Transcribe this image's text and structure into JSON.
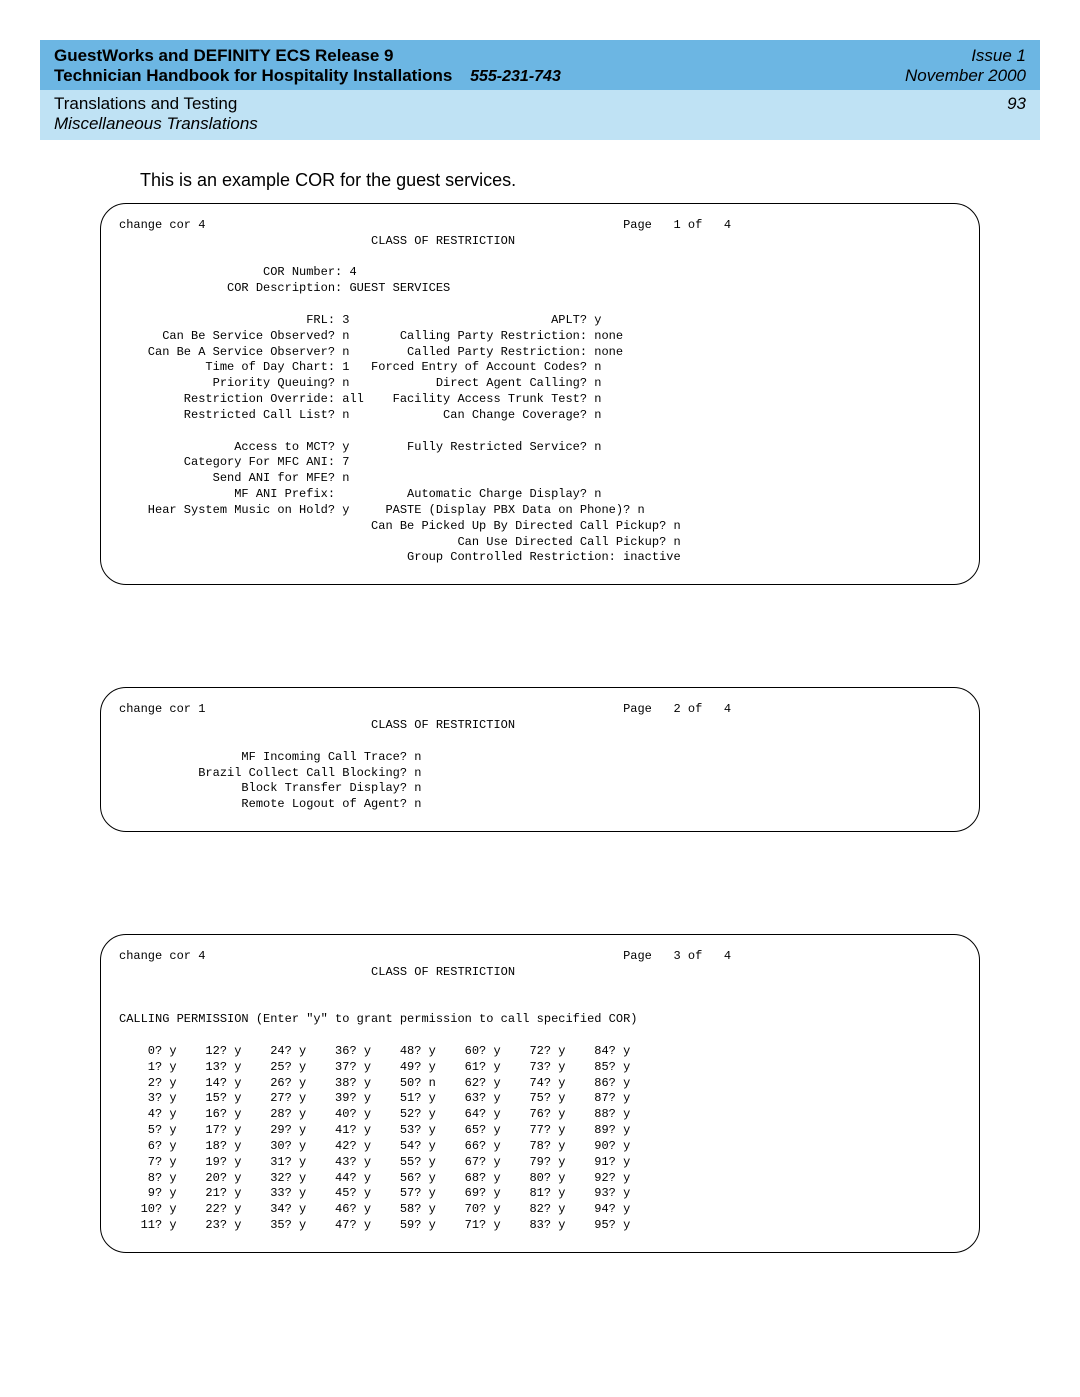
{
  "header": {
    "title": "GuestWorks and DEFINITY ECS Release 9",
    "subtitle": "Technician Handbook for Hospitality Installations",
    "docnum": "555-231-743",
    "issue": "Issue 1",
    "date": "November 2000",
    "section": "Translations and Testing",
    "subsection": "Miscellaneous Translations",
    "page": "93"
  },
  "intro": "This is an example COR for the guest services.",
  "screen1": {
    "cmd": "change cor 4",
    "page": "Page   1 of   4",
    "title": "CLASS OF RESTRICTION",
    "cor_number_label": "COR Number:",
    "cor_number": "4",
    "cor_desc_label": "COR Description:",
    "cor_desc": "GUEST SERVICES",
    "left_fields": [
      {
        "l": "FRL:",
        "v": "3"
      },
      {
        "l": "Can Be Service Observed?",
        "v": "n"
      },
      {
        "l": "Can Be A Service Observer?",
        "v": "n"
      },
      {
        "l": "Time of Day Chart:",
        "v": "1"
      },
      {
        "l": "Priority Queuing?",
        "v": "n"
      },
      {
        "l": "Restriction Override:",
        "v": "all"
      },
      {
        "l": "Restricted Call List?",
        "v": "n"
      }
    ],
    "right_fields": [
      {
        "l": "APLT?",
        "v": "y"
      },
      {
        "l": "Calling Party Restriction:",
        "v": "none"
      },
      {
        "l": "Called Party Restriction:",
        "v": "none"
      },
      {
        "l": "Forced Entry of Account Codes?",
        "v": "n"
      },
      {
        "l": "Direct Agent Calling?",
        "v": "n"
      },
      {
        "l": "Facility Access Trunk Test?",
        "v": "n"
      },
      {
        "l": "Can Change Coverage?",
        "v": "n"
      }
    ],
    "mid_left": [
      {
        "l": "Access to MCT?",
        "v": "y"
      },
      {
        "l": "Category For MFC ANI:",
        "v": "7"
      },
      {
        "l": "Send ANI for MFE?",
        "v": "n"
      },
      {
        "l": "MF ANI Prefix:",
        "v": ""
      },
      {
        "l": "Hear System Music on Hold?",
        "v": "y"
      }
    ],
    "mid_right": [
      {
        "l": "Fully Restricted Service?",
        "v": "n"
      }
    ],
    "bottom": [
      {
        "l": "Automatic Charge Display?",
        "v": "n"
      },
      {
        "l": "PASTE (Display PBX Data on Phone)?",
        "v": "n"
      },
      {
        "l": "Can Be Picked Up By Directed Call Pickup?",
        "v": "n"
      },
      {
        "l": "Can Use Directed Call Pickup?",
        "v": "n"
      },
      {
        "l": "Group Controlled Restriction:",
        "v": "inactive"
      }
    ]
  },
  "screen2": {
    "cmd": "change cor 1",
    "page": "Page   2 of   4",
    "title": "CLASS OF RESTRICTION",
    "fields": [
      {
        "l": "MF Incoming Call Trace?",
        "v": "n"
      },
      {
        "l": "Brazil Collect Call Blocking?",
        "v": "n"
      },
      {
        "l": "Block Transfer Display?",
        "v": "n"
      },
      {
        "l": "Remote Logout of Agent?",
        "v": "n"
      }
    ]
  },
  "screen3": {
    "cmd": "change cor 4",
    "page": "Page   3 of   4",
    "title": "CLASS OF RESTRICTION",
    "perm_heading": "CALLING PERMISSION (Enter \"y\" to grant permission to call specified COR)",
    "perm_cols": 8,
    "perm_start": 0,
    "perm_end": 95,
    "perm_rows": 12,
    "perm_override": {
      "50": "n"
    }
  }
}
